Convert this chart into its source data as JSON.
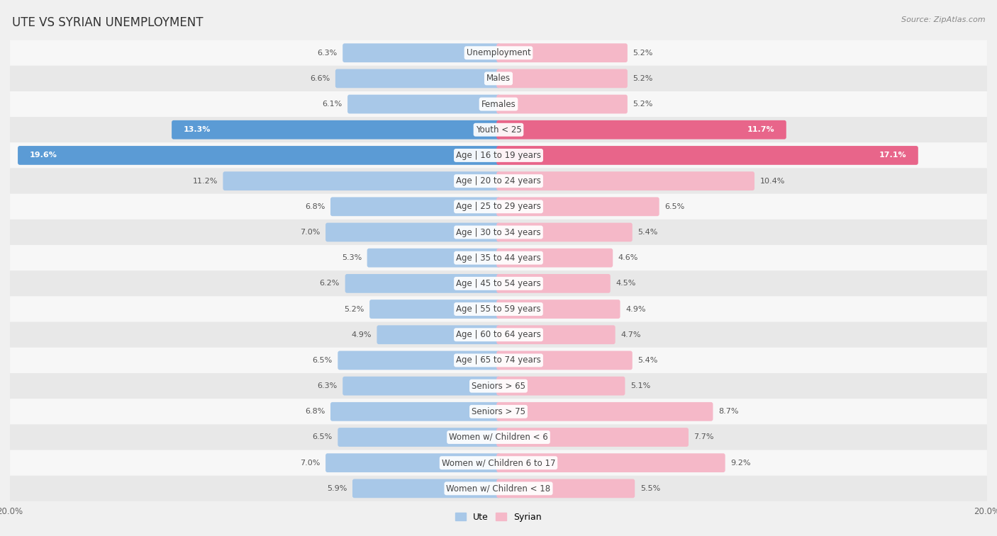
{
  "title": "UTE VS SYRIAN UNEMPLOYMENT",
  "source": "Source: ZipAtlas.com",
  "categories": [
    "Unemployment",
    "Males",
    "Females",
    "Youth < 25",
    "Age | 16 to 19 years",
    "Age | 20 to 24 years",
    "Age | 25 to 29 years",
    "Age | 30 to 34 years",
    "Age | 35 to 44 years",
    "Age | 45 to 54 years",
    "Age | 55 to 59 years",
    "Age | 60 to 64 years",
    "Age | 65 to 74 years",
    "Seniors > 65",
    "Seniors > 75",
    "Women w/ Children < 6",
    "Women w/ Children 6 to 17",
    "Women w/ Children < 18"
  ],
  "ute_values": [
    6.3,
    6.6,
    6.1,
    13.3,
    19.6,
    11.2,
    6.8,
    7.0,
    5.3,
    6.2,
    5.2,
    4.9,
    6.5,
    6.3,
    6.8,
    6.5,
    7.0,
    5.9
  ],
  "syrian_values": [
    5.2,
    5.2,
    5.2,
    11.7,
    17.1,
    10.4,
    6.5,
    5.4,
    4.6,
    4.5,
    4.9,
    4.7,
    5.4,
    5.1,
    8.7,
    7.7,
    9.2,
    5.5
  ],
  "ute_color_normal": "#a8c8e8",
  "ute_color_highlight": "#5b9bd5",
  "syrian_color_normal": "#f5b8c8",
  "syrian_color_highlight": "#e8658a",
  "highlight_rows": [
    3,
    4
  ],
  "bar_height": 0.58,
  "x_max": 20.0,
  "background_color": "#f0f0f0",
  "row_bg_colors": [
    "#f7f7f7",
    "#e8e8e8"
  ],
  "label_fontsize": 8.5,
  "value_fontsize": 8.0,
  "title_fontsize": 12,
  "source_fontsize": 8
}
